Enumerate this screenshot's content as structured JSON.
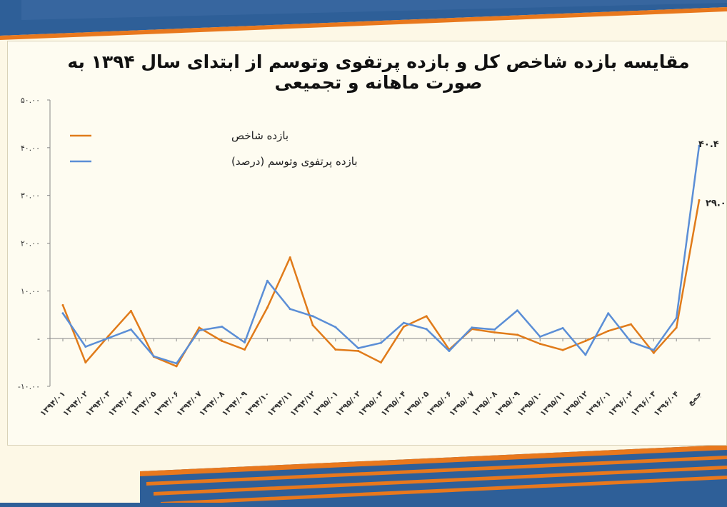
{
  "chart_data": {
    "type": "line",
    "title": "مقایسه بازده شاخص کل و بازده پرتفوی وتوسم از ابتدای سال ۱۳۹۴ به صورت ماهانه و تجمیعی",
    "categories": [
      "۱۳۹۴/۰۱",
      "۱۳۹۴/۰۲",
      "۱۳۹۴/۰۳",
      "۱۳۹۴/۰۴",
      "۱۳۹۴/۰۵",
      "۱۳۹۴/۰۶",
      "۱۳۹۴/۰۷",
      "۱۳۹۴/۰۸",
      "۱۳۹۴/۰۹",
      "۱۳۹۴/۱۰",
      "۱۳۹۴/۱۱",
      "۱۳۹۴/۱۲",
      "۱۳۹۵/۰۱",
      "۱۳۹۵/۰۲",
      "۱۳۹۵/۰۳",
      "۱۳۹۵/۰۴",
      "۱۳۹۵/۰۵",
      "۱۳۹۵/۰۶",
      "۱۳۹۵/۰۷",
      "۱۳۹۵/۰۸",
      "۱۳۹۵/۰۹",
      "۱۳۹۵/۱۰",
      "۱۳۹۵/۱۱",
      "۱۳۹۵/۱۲",
      "۱۳۹۶/۰۱",
      "۱۳۹۶/۰۲",
      "۱۳۹۶/۰۳",
      "۱۳۹۶/۰۴",
      "جمع"
    ],
    "series": [
      {
        "name": "بازده شاخص",
        "color": "#e07b1a",
        "values": [
          7.0,
          -5.0,
          0.5,
          5.8,
          -3.8,
          -5.8,
          2.3,
          -0.5,
          -2.3,
          6.5,
          17.0,
          2.8,
          -2.3,
          -2.6,
          -5.0,
          2.5,
          4.7,
          -2.3,
          2.0,
          1.3,
          0.8,
          -1.1,
          -2.4,
          -0.5,
          1.6,
          3.0,
          -3.0,
          2.3,
          29.0
        ]
      },
      {
        "name": "بازده  پرتفوی وتوسم (درصد)",
        "color": "#5b8ed6",
        "values": [
          5.3,
          -1.7,
          0.1,
          1.9,
          -3.7,
          -5.2,
          1.7,
          2.5,
          -0.8,
          12.1,
          6.2,
          4.7,
          2.4,
          -2.0,
          -0.9,
          3.3,
          2.0,
          -2.6,
          2.3,
          1.9,
          5.9,
          0.4,
          2.2,
          -3.4,
          5.3,
          -0.7,
          -2.4,
          4.3,
          40.4
        ]
      }
    ],
    "end_labels": [
      "۲۹.۰",
      "۴۰.۴"
    ],
    "y_tick_labels": [
      "-۱۰.۰۰",
      "-",
      "۱۰.۰۰",
      "۲۰.۰۰",
      "۳۰.۰۰",
      "۴۰.۰۰",
      "۵۰.۰۰"
    ],
    "y_tick_values": [
      -10,
      0,
      10,
      20,
      30,
      40,
      50
    ],
    "ylim": [
      -10,
      50
    ],
    "grid": false,
    "legend_position": "top-left"
  }
}
